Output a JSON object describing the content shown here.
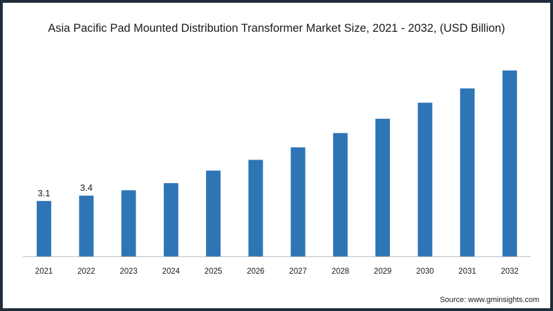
{
  "chart_data": {
    "type": "bar",
    "title": "Asia Pacific Pad Mounted Distribution Transformer Market Size, 2021 - 2032, (USD Billion)",
    "xlabel": "",
    "ylabel": "",
    "categories": [
      "2021",
      "2022",
      "2023",
      "2024",
      "2025",
      "2026",
      "2027",
      "2028",
      "2029",
      "2030",
      "2031",
      "2032"
    ],
    "values": [
      3.1,
      3.4,
      3.7,
      4.1,
      4.8,
      5.4,
      6.1,
      6.9,
      7.7,
      8.6,
      9.4,
      10.4
    ],
    "data_labels": [
      "3.1",
      "3.4",
      "",
      "",
      "",
      "",
      "",
      "",
      "",
      "",
      "",
      ""
    ],
    "ylim": [
      0,
      10.4
    ],
    "grid": false,
    "legend": "none",
    "bar_color": "#2e75b6"
  },
  "source": "Source: www.gminsights.com"
}
